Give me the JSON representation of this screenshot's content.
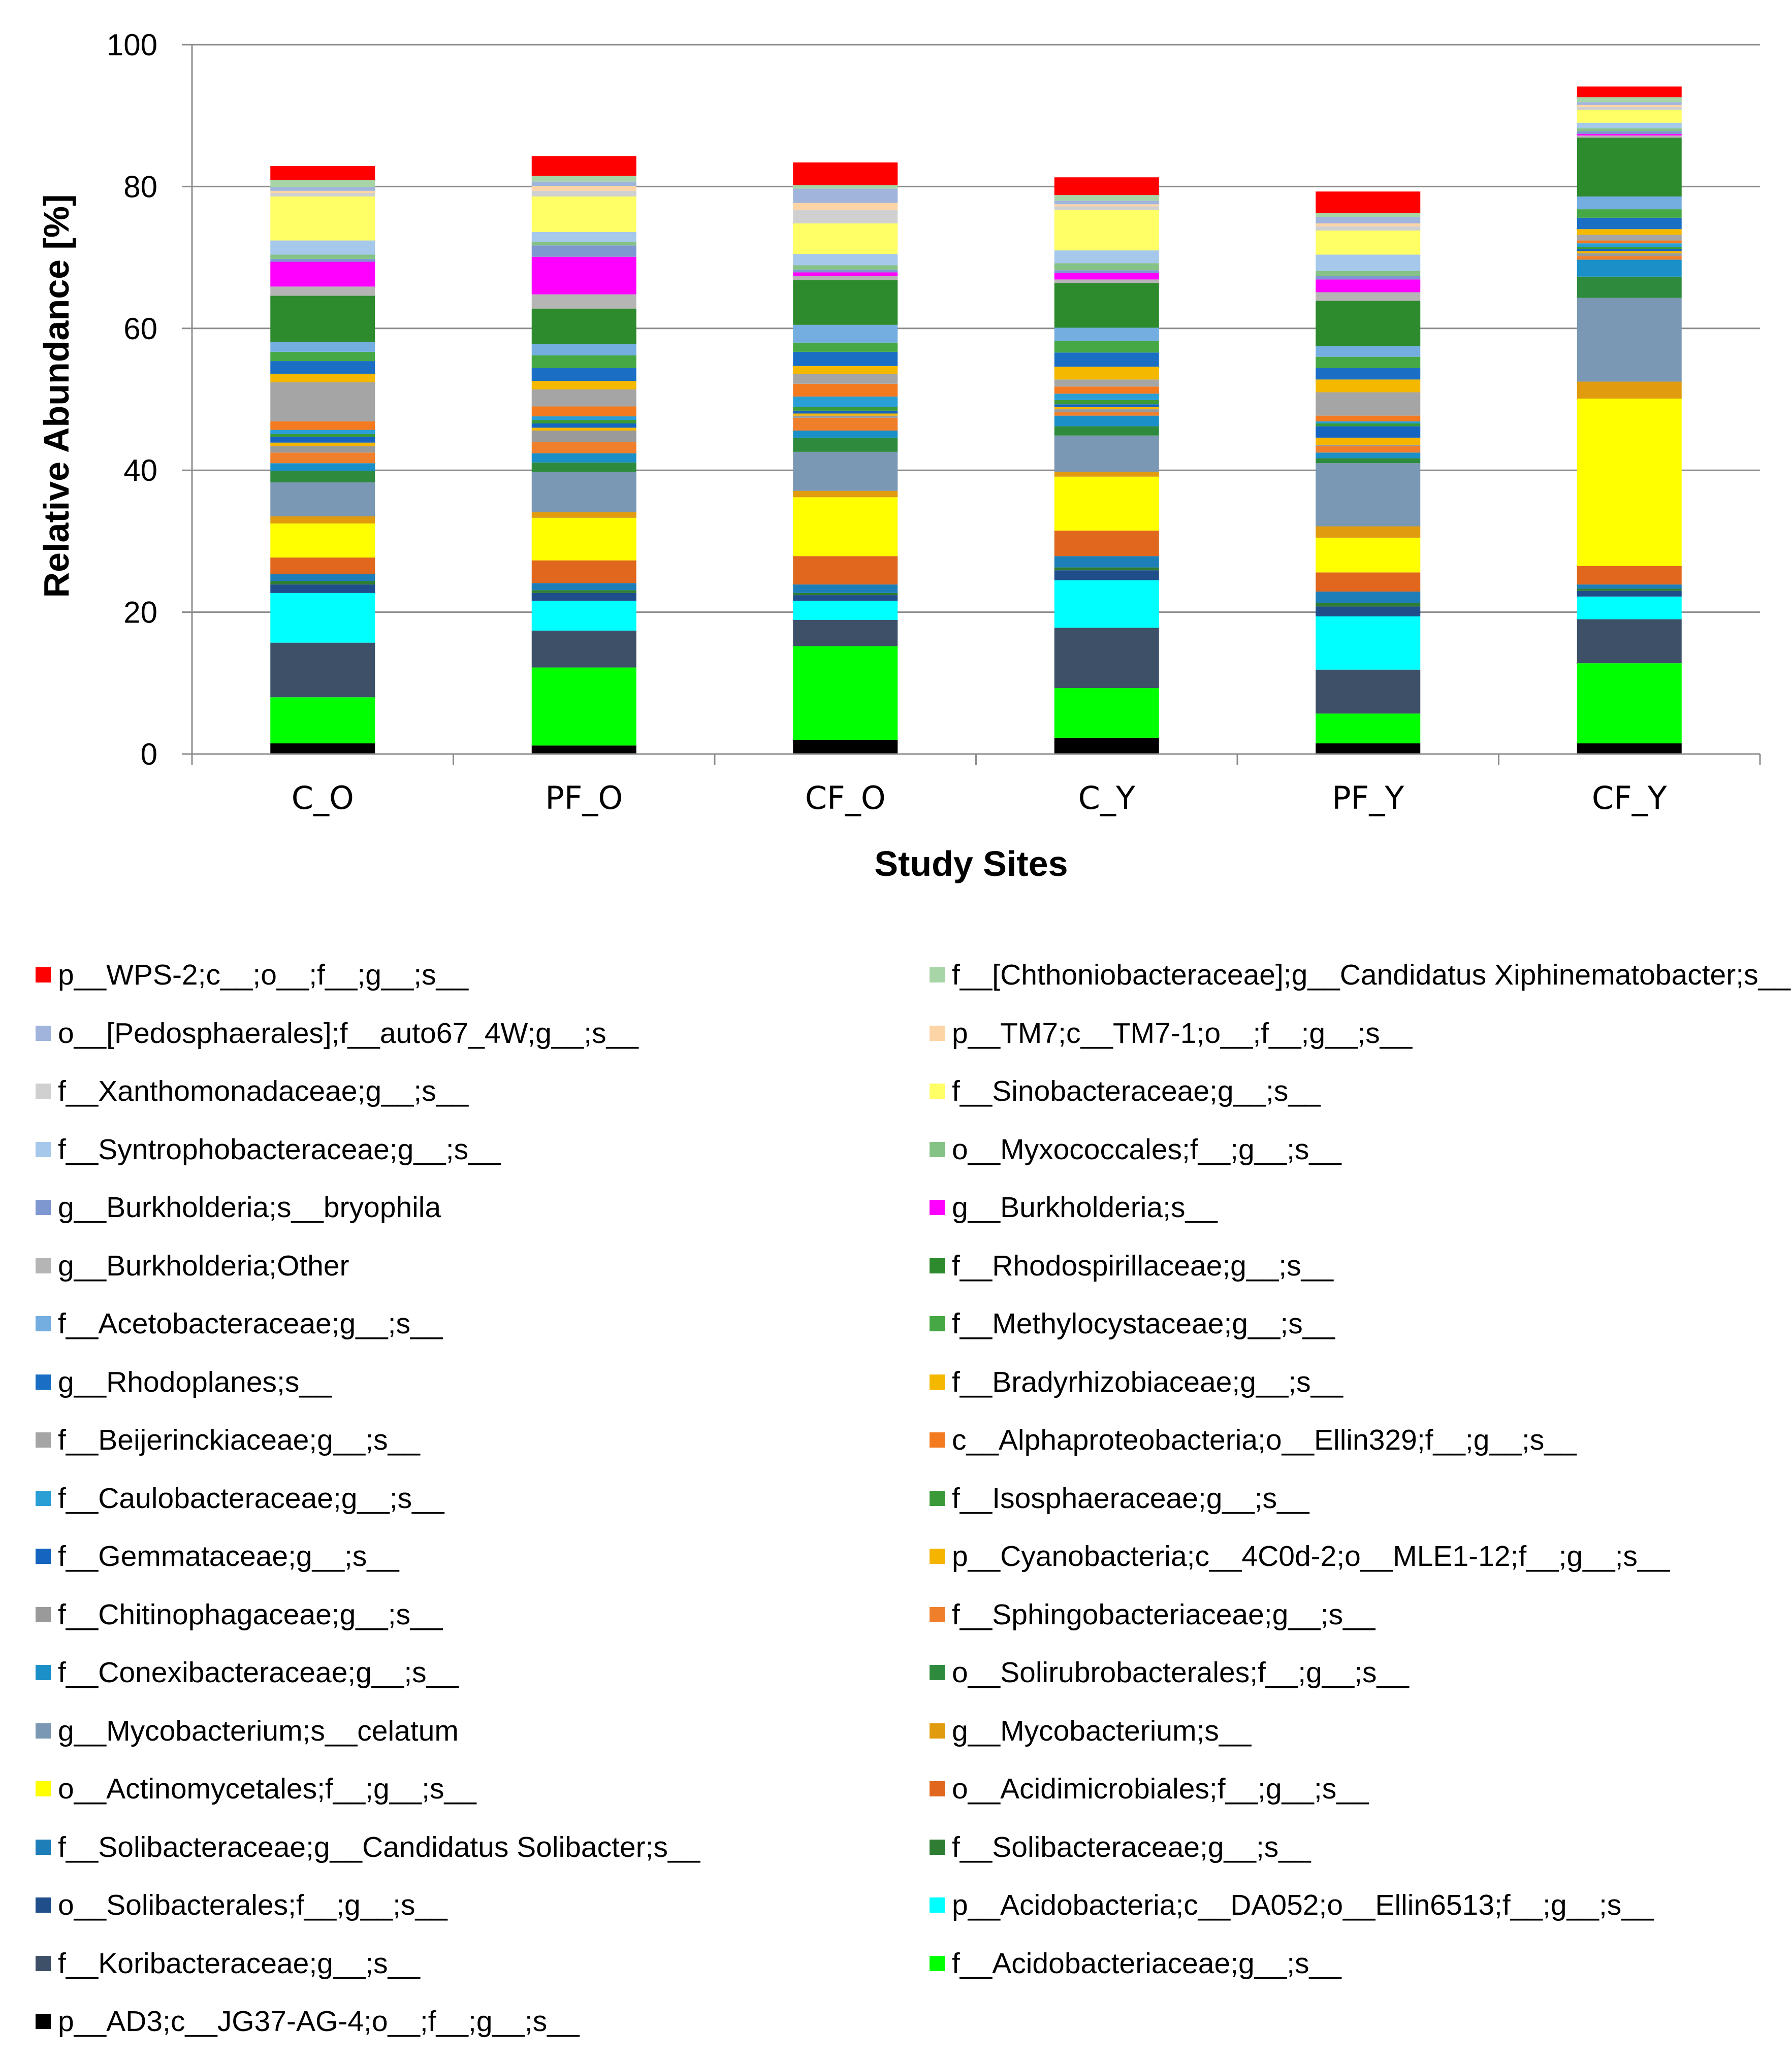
{
  "chart_data": {
    "type": "stacked-bar",
    "title": "",
    "xlabel": "Study Sites",
    "ylabel": "Relative Abundance [%]",
    "ylim": [
      0,
      100
    ],
    "yticks": [
      0,
      20,
      40,
      60,
      80,
      100
    ],
    "grid": true,
    "legend_position": "bottom",
    "categories": [
      "C_O",
      "PF_O",
      "CF_O",
      "C_Y",
      "PF_Y",
      "CF_Y"
    ],
    "series": [
      {
        "name": "p__AD3;c__JG37-AG-4;o__;f__;g__;s__",
        "color": "#000000",
        "values": [
          1.5,
          1.2,
          2.0,
          2.3,
          1.5,
          1.5
        ]
      },
      {
        "name": "f__Acidobacteriaceae;g__;s__",
        "color": "#00ff00",
        "values": [
          6.5,
          11.0,
          13.2,
          7.0,
          4.2,
          11.3
        ]
      },
      {
        "name": "f__Koribacteraceae;g__;s__",
        "color": "#3d5068",
        "values": [
          7.7,
          5.2,
          3.7,
          8.5,
          6.2,
          6.2
        ]
      },
      {
        "name": "p__Acidobacteria;c__DA052;o__Ellin6513;f__;g__;s__",
        "color": "#00ffff",
        "values": [
          7.0,
          4.2,
          2.7,
          6.7,
          7.5,
          3.2
        ]
      },
      {
        "name": "o__Solibacterales;f__;g__;s__",
        "color": "#1f4e8a",
        "values": [
          1.2,
          1.1,
          0.8,
          1.4,
          1.4,
          0.8
        ]
      },
      {
        "name": "f__Solibacteraceae;g__;s__",
        "color": "#2e7d32",
        "values": [
          0.5,
          0.4,
          0.3,
          0.4,
          0.5,
          0.3
        ]
      },
      {
        "name": "f__Solibacteraceae;g__Candidatus Solibacter;s__",
        "color": "#1e7eb8",
        "values": [
          1.0,
          1.0,
          1.2,
          1.6,
          1.6,
          0.6
        ]
      },
      {
        "name": "o__Acidimicrobiales;f__;g__;s__",
        "color": "#e0671d",
        "values": [
          2.3,
          3.2,
          4.0,
          3.6,
          2.7,
          2.6
        ]
      },
      {
        "name": "o__Actinomycetales;f__;g__;s__",
        "color": "#ffff00",
        "values": [
          4.8,
          6.0,
          8.3,
          7.6,
          4.9,
          23.6
        ]
      },
      {
        "name": "g__Mycobacterium;s__",
        "color": "#e09b0e",
        "values": [
          1.0,
          0.8,
          0.9,
          0.7,
          1.6,
          2.4
        ]
      },
      {
        "name": "g__Mycobacterium;s__celatum",
        "color": "#7a97b3",
        "values": [
          4.8,
          5.7,
          5.5,
          5.1,
          8.9,
          11.8
        ]
      },
      {
        "name": "o__Solirubrobacterales;f__;g__;s__",
        "color": "#2e8b3e",
        "values": [
          1.6,
          1.3,
          2.0,
          1.3,
          0.7,
          3.0
        ]
      },
      {
        "name": "f__Conexibacteraceae;g__;s__",
        "color": "#1b8fc7",
        "values": [
          1.1,
          1.3,
          1.0,
          1.5,
          0.8,
          2.4
        ]
      },
      {
        "name": "f__Sphingobacteriaceae;g__;s__",
        "color": "#f07f2c",
        "values": [
          1.5,
          1.6,
          1.8,
          0.5,
          0.9,
          0.5
        ]
      },
      {
        "name": "f__Chitinophagaceae;g__;s__",
        "color": "#9a9a9a",
        "values": [
          0.9,
          1.6,
          0.3,
          0.4,
          0.2,
          0.4
        ]
      },
      {
        "name": "p__Cyanobacteria;c__4C0d-2;o__MLE1-12;f__;g__;s__",
        "color": "#f5b400",
        "values": [
          0.5,
          0.4,
          0.3,
          0.3,
          1.0,
          0.3
        ]
      },
      {
        "name": "f__Gemmataceae;g__;s__",
        "color": "#1565c0",
        "values": [
          0.8,
          0.6,
          0.4,
          0.4,
          1.6,
          0.3
        ]
      },
      {
        "name": "f__Isosphaeraceae;g__;s__",
        "color": "#3a9a3a",
        "values": [
          0.4,
          0.5,
          0.5,
          0.6,
          0.4,
          0.3
        ]
      },
      {
        "name": "f__Caulobacteraceae;g__;s__",
        "color": "#2a9fd6",
        "values": [
          0.6,
          0.5,
          1.5,
          0.9,
          0.3,
          0.5
        ]
      },
      {
        "name": "c__Alphaproteobacteria;o__Ellin329;f__;g__;s__",
        "color": "#f47a20",
        "values": [
          1.2,
          1.4,
          1.8,
          1.0,
          0.8,
          0.4
        ]
      },
      {
        "name": "f__Beijerinckiaceae;g__;s__",
        "color": "#a5a5a5",
        "values": [
          5.5,
          2.4,
          1.4,
          1.0,
          3.3,
          0.8
        ]
      },
      {
        "name": "f__Bradyrhizobiaceae;g__;s__",
        "color": "#f4b800",
        "values": [
          1.2,
          1.2,
          1.1,
          1.8,
          1.8,
          0.8
        ]
      },
      {
        "name": "g__Rhodoplanes;s__",
        "color": "#1a6fc4",
        "values": [
          1.8,
          1.8,
          2.0,
          2.0,
          1.6,
          1.6
        ]
      },
      {
        "name": "f__Methylocystaceae;g__;s__",
        "color": "#45a845",
        "values": [
          1.3,
          1.8,
          1.3,
          1.6,
          1.6,
          1.2
        ]
      },
      {
        "name": "f__Acetobacteraceae;g__;s__",
        "color": "#74aee0",
        "values": [
          1.4,
          1.6,
          2.5,
          1.9,
          1.5,
          1.8
        ]
      },
      {
        "name": "f__Rhodospirillaceae;g__;s__",
        "color": "#2d8a2d",
        "values": [
          6.5,
          5.0,
          6.3,
          6.3,
          6.4,
          8.3
        ]
      },
      {
        "name": "g__Burkholderia;Other",
        "color": "#b5b5b5",
        "values": [
          1.3,
          2.0,
          0.6,
          0.5,
          1.2,
          0.3
        ]
      },
      {
        "name": "g__Burkholderia;s__",
        "color": "#ff00ff",
        "values": [
          3.5,
          5.3,
          0.5,
          0.9,
          1.8,
          0.2
        ]
      },
      {
        "name": "g__Burkholderia;s__bryophila",
        "color": "#7f97d0",
        "values": [
          0.4,
          1.6,
          0.4,
          0.4,
          0.5,
          0.4
        ]
      },
      {
        "name": "o__Myxococcales;f__;g__;s__",
        "color": "#85c285",
        "values": [
          0.6,
          0.5,
          0.6,
          1.0,
          0.7,
          0.4
        ]
      },
      {
        "name": "f__Syntrophobacteraceae;g__;s__",
        "color": "#a6c8ea",
        "values": [
          2.0,
          1.4,
          1.6,
          1.8,
          2.3,
          0.8
        ]
      },
      {
        "name": "f__Sinobacteraceae;g__;s__",
        "color": "#ffff66",
        "values": [
          6.2,
          5.0,
          4.3,
          5.7,
          3.4,
          1.8
        ]
      },
      {
        "name": "f__Xanthomonadaceae;g__;s__",
        "color": "#d0d0d0",
        "values": [
          0.5,
          0.8,
          1.9,
          0.5,
          0.6,
          0.4
        ]
      },
      {
        "name": "p__TM7;c__TM7-1;o__;f__;g__;s__",
        "color": "#fdd4a5",
        "values": [
          0.3,
          0.7,
          1.0,
          0.3,
          0.4,
          0.3
        ]
      },
      {
        "name": "o__[Pedosphaerales];f__auto67_4W;g__;s__",
        "color": "#a0b4dc",
        "values": [
          0.5,
          0.6,
          2.0,
          0.5,
          0.9,
          0.4
        ]
      },
      {
        "name": "f__[Chthoniobacteraceae];g__Candidatus Xiphinematobacter;s__",
        "color": "#a8d5a8",
        "values": [
          1.0,
          0.8,
          0.5,
          0.8,
          0.6,
          0.7
        ]
      },
      {
        "name": "p__WPS-2;c__;o__;f__;g__;s__",
        "color": "#ff0000",
        "values": [
          2.0,
          2.8,
          3.2,
          2.5,
          3.0,
          1.5
        ]
      }
    ]
  },
  "legend": {
    "left": [
      {
        "label": "p__WPS-2;c__;o__;f__;g__;s__",
        "color": "#ff0000"
      },
      {
        "label": "o__[Pedosphaerales];f__auto67_4W;g__;s__",
        "color": "#a0b4dc"
      },
      {
        "label": "f__Xanthomonadaceae;g__;s__",
        "color": "#d0d0d0"
      },
      {
        "label": "f__Syntrophobacteraceae;g__;s__",
        "color": "#a6c8ea"
      },
      {
        "label": "g__Burkholderia;s__bryophila",
        "color": "#7f97d0"
      },
      {
        "label": "g__Burkholderia;Other",
        "color": "#b5b5b5"
      },
      {
        "label": "f__Acetobacteraceae;g__;s__",
        "color": "#74aee0"
      },
      {
        "label": "g__Rhodoplanes;s__",
        "color": "#1a6fc4"
      },
      {
        "label": "f__Beijerinckiaceae;g__;s__",
        "color": "#a5a5a5"
      },
      {
        "label": "f__Caulobacteraceae;g__;s__",
        "color": "#2a9fd6"
      },
      {
        "label": "f__Gemmataceae;g__;s__",
        "color": "#1565c0"
      },
      {
        "label": "f__Chitinophagaceae;g__;s__",
        "color": "#9a9a9a"
      },
      {
        "label": "f__Conexibacteraceae;g__;s__",
        "color": "#1b8fc7"
      },
      {
        "label": "g__Mycobacterium;s__celatum",
        "color": "#7a97b3"
      },
      {
        "label": "o__Actinomycetales;f__;g__;s__",
        "color": "#ffff00"
      },
      {
        "label": "f__Solibacteraceae;g__Candidatus Solibacter;s__",
        "color": "#1e7eb8"
      },
      {
        "label": "o__Solibacterales;f__;g__;s__",
        "color": "#1f4e8a"
      },
      {
        "label": "f__Koribacteraceae;g__;s__",
        "color": "#3d5068"
      },
      {
        "label": "p__AD3;c__JG37-AG-4;o__;f__;g__;s__",
        "color": "#000000"
      }
    ],
    "right": [
      {
        "label": "f__[Chthoniobacteraceae];g__Candidatus Xiphinematobacter;s__",
        "color": "#a8d5a8"
      },
      {
        "label": "p__TM7;c__TM7-1;o__;f__;g__;s__",
        "color": "#fdd4a5"
      },
      {
        "label": "f__Sinobacteraceae;g__;s__",
        "color": "#ffff66"
      },
      {
        "label": "o__Myxococcales;f__;g__;s__",
        "color": "#85c285"
      },
      {
        "label": "g__Burkholderia;s__",
        "color": "#ff00ff"
      },
      {
        "label": "f__Rhodospirillaceae;g__;s__",
        "color": "#2d8a2d"
      },
      {
        "label": "f__Methylocystaceae;g__;s__",
        "color": "#45a845"
      },
      {
        "label": "f__Bradyrhizobiaceae;g__;s__",
        "color": "#f4b800"
      },
      {
        "label": "c__Alphaproteobacteria;o__Ellin329;f__;g__;s__",
        "color": "#f47a20"
      },
      {
        "label": "f__Isosphaeraceae;g__;s__",
        "color": "#3a9a3a"
      },
      {
        "label": "p__Cyanobacteria;c__4C0d-2;o__MLE1-12;f__;g__;s__",
        "color": "#f5b400"
      },
      {
        "label": "f__Sphingobacteriaceae;g__;s__",
        "color": "#f07f2c"
      },
      {
        "label": "o__Solirubrobacterales;f__;g__;s__",
        "color": "#2e8b3e"
      },
      {
        "label": "g__Mycobacterium;s__",
        "color": "#e09b0e"
      },
      {
        "label": "o__Acidimicrobiales;f__;g__;s__",
        "color": "#e0671d"
      },
      {
        "label": "f__Solibacteraceae;g__;s__",
        "color": "#2e7d32"
      },
      {
        "label": "p__Acidobacteria;c__DA052;o__Ellin6513;f__;g__;s__",
        "color": "#00ffff"
      },
      {
        "label": "f__Acidobacteriaceae;g__;s__",
        "color": "#00ff00"
      }
    ]
  }
}
